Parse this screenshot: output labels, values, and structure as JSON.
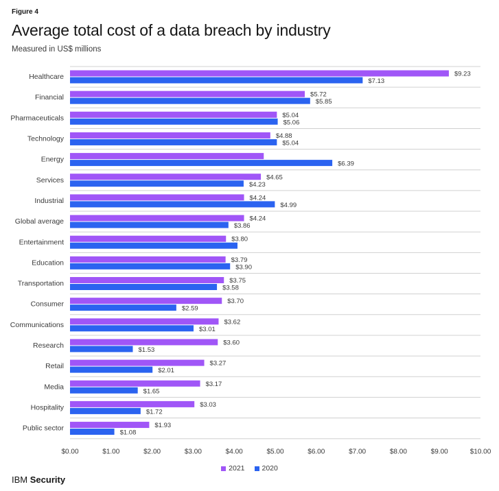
{
  "figure_label": "Figure 4",
  "brand": {
    "prefix": "IBM",
    "name": "Security"
  },
  "colors": {
    "s2021": "#a056f7",
    "s2020": "#2b63f0",
    "grid": "#d0d0d0",
    "text": "#393939"
  },
  "chart_data": {
    "type": "bar",
    "orientation": "horizontal",
    "title": "Average total cost of a data breach by industry",
    "subtitle": "Measured in US$ millions",
    "categories": [
      "Healthcare",
      "Financial",
      "Pharmaceuticals",
      "Technology",
      "Energy",
      "Services",
      "Industrial",
      "Global average",
      "Entertainment",
      "Education",
      "Transportation",
      "Consumer",
      "Communications",
      "Research",
      "Retail",
      "Media",
      "Hospitality",
      "Public sector"
    ],
    "series": [
      {
        "name": "2021",
        "values": [
          9.23,
          5.72,
          5.04,
          4.88,
          4.72,
          4.65,
          4.24,
          4.24,
          3.8,
          3.79,
          3.75,
          3.7,
          3.62,
          3.6,
          3.27,
          3.17,
          3.03,
          1.93
        ],
        "labels": [
          "$9.23",
          "$5.72",
          "$5.04",
          "$4.88",
          "",
          "$4.65",
          "$4.24",
          "$4.24",
          "$3.80",
          "$3.79",
          "$3.75",
          "$3.70",
          "$3.62",
          "$3.60",
          "$3.27",
          "$3.17",
          "$3.03",
          "$1.93"
        ]
      },
      {
        "name": "2020",
        "values": [
          7.13,
          5.85,
          5.06,
          5.04,
          6.39,
          4.23,
          4.99,
          3.86,
          4.08,
          3.9,
          3.58,
          2.59,
          3.01,
          1.53,
          2.01,
          1.65,
          1.72,
          1.08
        ],
        "labels": [
          "$7.13",
          "$5.85",
          "$5.06",
          "$5.04",
          "$6.39",
          "$4.23",
          "$4.99",
          "$3.86",
          "",
          "$3.90",
          "$3.58",
          "$2.59",
          "$3.01",
          "$1.53",
          "$2.01",
          "$1.65",
          "$1.72",
          "$1.08"
        ]
      }
    ],
    "xlim": [
      0,
      10
    ],
    "xticks": [
      0,
      1,
      2,
      3,
      4,
      5,
      6,
      7,
      8,
      9,
      10
    ],
    "xtick_labels": [
      "$0.00",
      "$1.00",
      "$2.00",
      "$3.00",
      "$4.00",
      "$5.00",
      "$6.00",
      "$7.00",
      "$8.00",
      "$9.00",
      "$10.00"
    ],
    "legend": [
      "2021",
      "2020"
    ],
    "legend_position": "bottom-center",
    "grid": "horizontal separators"
  }
}
